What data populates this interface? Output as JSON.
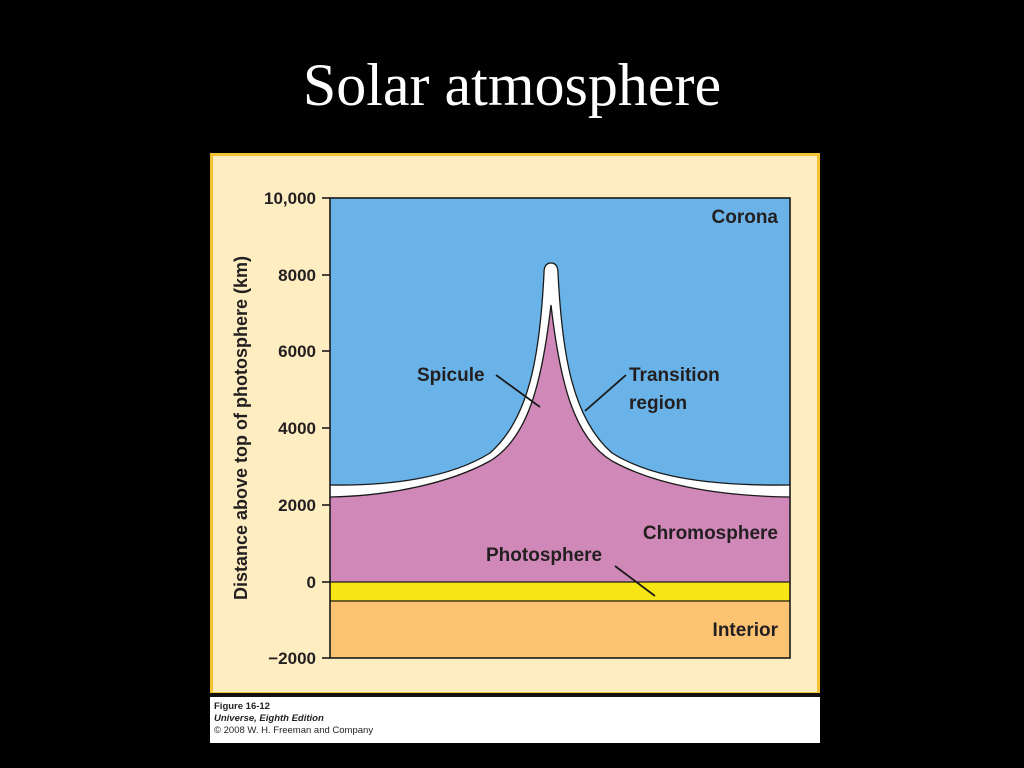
{
  "slide": {
    "title": "Solar atmosphere"
  },
  "diagram": {
    "y_axis": {
      "label": "Distance above top of photosphere (km)",
      "ticks": [
        "10,000",
        "8000",
        "6000",
        "4000",
        "2000",
        "0",
        "−2000"
      ]
    },
    "layers": {
      "corona": "Corona",
      "chromosphere": "Chromosphere",
      "photosphere": "Photosphere",
      "interior": "Interior"
    },
    "features": {
      "spicule": "Spicule",
      "transition_line1": "Transition",
      "transition_line2": "region"
    },
    "colors": {
      "frame_bg": "#fdedc1",
      "frame_border": "#f3c331",
      "corona": "#69b3e8",
      "transition": "#ffffff",
      "chromosphere": "#d088b8",
      "photosphere": "#f7e516",
      "interior": "#fbc372"
    }
  },
  "caption": {
    "figure": "Figure 16-12",
    "book": "Universe, Eighth Edition",
    "copyright": "© 2008 W. H. Freeman and Company"
  }
}
